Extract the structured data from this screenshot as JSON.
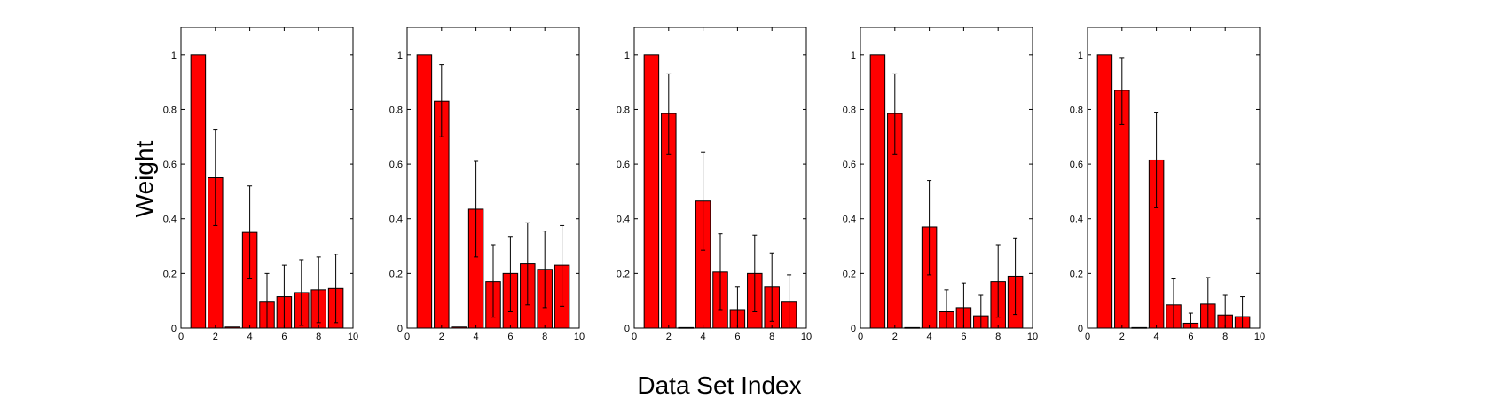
{
  "figure": {
    "ylabel": "Weight",
    "xlabel": "Data Set Index"
  },
  "colors": {
    "bar": "#ff0000",
    "edge": "#000000"
  },
  "chart_data": [
    {
      "type": "bar",
      "xlim": [
        0,
        10
      ],
      "ylim": [
        0,
        1.1
      ],
      "xticks": [
        0,
        2,
        4,
        6,
        8,
        10
      ],
      "yticks": [
        0,
        0.2,
        0.4,
        0.6,
        0.8,
        1
      ],
      "x": [
        1,
        2,
        3,
        4,
        5,
        6,
        7,
        8,
        9
      ],
      "values": [
        1.0,
        0.55,
        0.004,
        0.35,
        0.095,
        0.115,
        0.13,
        0.14,
        0.145
      ],
      "error_upper": [
        null,
        0.725,
        null,
        0.52,
        0.2,
        0.23,
        0.25,
        0.26,
        0.27
      ],
      "error_lower": [
        null,
        0.375,
        null,
        0.18,
        0.0,
        0.0,
        0.01,
        0.02,
        0.02
      ]
    },
    {
      "type": "bar",
      "xlim": [
        0,
        10
      ],
      "ylim": [
        0,
        1.1
      ],
      "xticks": [
        0,
        2,
        4,
        6,
        8,
        10
      ],
      "yticks": [
        0,
        0.2,
        0.4,
        0.6,
        0.8,
        1
      ],
      "x": [
        1,
        2,
        3,
        4,
        5,
        6,
        7,
        8,
        9
      ],
      "values": [
        1.0,
        0.83,
        0.004,
        0.435,
        0.17,
        0.2,
        0.235,
        0.215,
        0.23
      ],
      "error_upper": [
        null,
        0.965,
        null,
        0.61,
        0.305,
        0.335,
        0.385,
        0.355,
        0.375
      ],
      "error_lower": [
        null,
        0.7,
        null,
        0.26,
        0.04,
        0.06,
        0.085,
        0.075,
        0.08
      ]
    },
    {
      "type": "bar",
      "xlim": [
        0,
        10
      ],
      "ylim": [
        0,
        1.1
      ],
      "xticks": [
        0,
        2,
        4,
        6,
        8,
        10
      ],
      "yticks": [
        0,
        0.2,
        0.4,
        0.6,
        0.8,
        1
      ],
      "x": [
        1,
        2,
        3,
        4,
        5,
        6,
        7,
        8,
        9
      ],
      "values": [
        1.0,
        0.785,
        0.002,
        0.465,
        0.205,
        0.065,
        0.2,
        0.15,
        0.095
      ],
      "error_upper": [
        null,
        0.93,
        null,
        0.645,
        0.345,
        0.15,
        0.34,
        0.275,
        0.195
      ],
      "error_lower": [
        null,
        0.635,
        null,
        0.285,
        0.065,
        0.0,
        0.06,
        0.025,
        0.0
      ]
    },
    {
      "type": "bar",
      "xlim": [
        0,
        10
      ],
      "ylim": [
        0,
        1.1
      ],
      "xticks": [
        0,
        2,
        4,
        6,
        8,
        10
      ],
      "yticks": [
        0,
        0.2,
        0.4,
        0.6,
        0.8,
        1
      ],
      "x": [
        1,
        2,
        3,
        4,
        5,
        6,
        7,
        8,
        9
      ],
      "values": [
        1.0,
        0.785,
        0.002,
        0.37,
        0.06,
        0.075,
        0.045,
        0.17,
        0.19
      ],
      "error_upper": [
        null,
        0.93,
        null,
        0.54,
        0.14,
        0.165,
        0.12,
        0.305,
        0.33
      ],
      "error_lower": [
        null,
        0.635,
        null,
        0.195,
        0.0,
        0.0,
        0.0,
        0.04,
        0.05
      ]
    },
    {
      "type": "bar",
      "xlim": [
        0,
        10
      ],
      "ylim": [
        0,
        1.1
      ],
      "xticks": [
        0,
        2,
        4,
        6,
        8,
        10
      ],
      "yticks": [
        0,
        0.2,
        0.4,
        0.6,
        0.8,
        1
      ],
      "x": [
        1,
        2,
        3,
        4,
        5,
        6,
        7,
        8,
        9
      ],
      "values": [
        1.0,
        0.87,
        0.002,
        0.615,
        0.085,
        0.018,
        0.088,
        0.048,
        0.042
      ],
      "error_upper": [
        null,
        0.99,
        null,
        0.79,
        0.18,
        0.055,
        0.185,
        0.12,
        0.115
      ],
      "error_lower": [
        null,
        0.745,
        null,
        0.44,
        0.0,
        0.0,
        0.0,
        0.0,
        0.0
      ]
    }
  ]
}
